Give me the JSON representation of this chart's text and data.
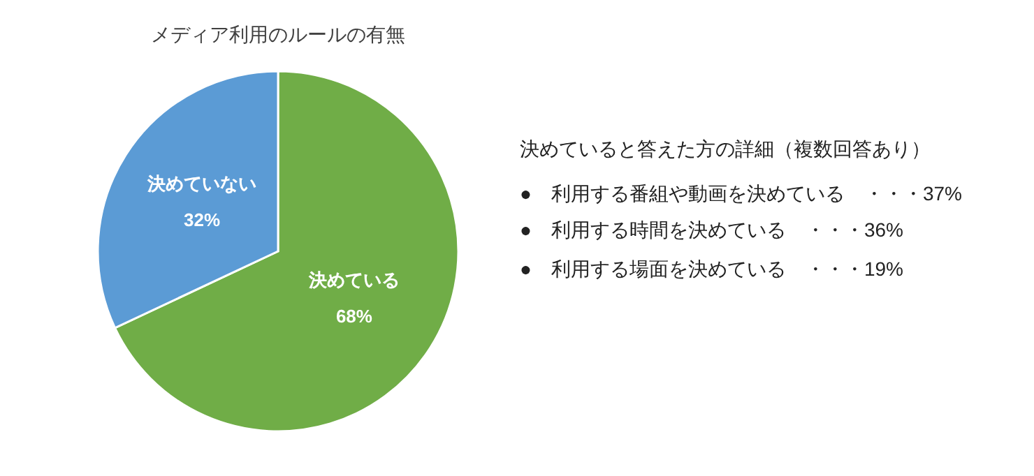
{
  "chart_data": {
    "type": "pie",
    "title": "メディア利用のルールの有無",
    "categories": [
      "決めている",
      "決めていない"
    ],
    "values": [
      68,
      32
    ],
    "colors": [
      "#70ad47",
      "#5b9bd5"
    ],
    "value_labels": [
      "68%",
      "32%"
    ],
    "annotations": [
      "決めていると答えた方の詳細（複数回答あり）",
      "●　利用する番組や動画を決めている　・・・37%",
      "●　利用する時間を決めている　・・・36%",
      "●　利用する場面を決めている　・・・19%"
    ]
  }
}
